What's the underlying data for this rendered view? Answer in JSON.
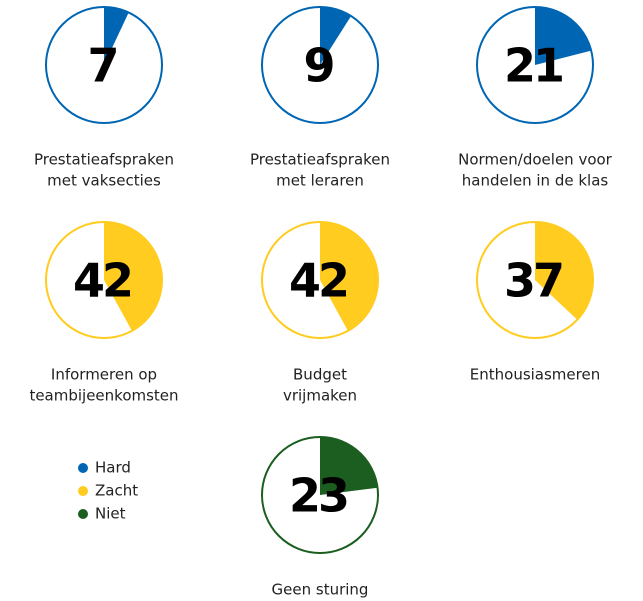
{
  "chart_data": [
    {
      "type": "pie",
      "title": [
        "Prestatieafspraken",
        "met vaksecties"
      ],
      "values": [
        7
      ],
      "total": 100,
      "color": "#0066b3"
    },
    {
      "type": "pie",
      "title": [
        "Prestatieafspraken",
        "met leraren"
      ],
      "values": [
        9
      ],
      "total": 100,
      "color": "#0066b3"
    },
    {
      "type": "pie",
      "title": [
        "Normen/doelen voor",
        "handelen in de klas"
      ],
      "values": [
        21
      ],
      "total": 100,
      "color": "#0066b3"
    },
    {
      "type": "pie",
      "title": [
        "Informeren op",
        "teambijeenkomsten"
      ],
      "values": [
        42
      ],
      "total": 100,
      "color": "#ffcc1f"
    },
    {
      "type": "pie",
      "title": [
        "Budget",
        "vrijmaken"
      ],
      "values": [
        42
      ],
      "total": 100,
      "color": "#ffcc1f"
    },
    {
      "type": "pie",
      "title": [
        "Enthousiasmeren"
      ],
      "values": [
        37
      ],
      "total": 100,
      "color": "#ffcc1f"
    },
    {
      "type": "pie",
      "title": [
        "Geen sturing"
      ],
      "values": [
        23
      ],
      "total": 100,
      "color": "#1b5e20"
    }
  ],
  "legend": [
    {
      "name": "Hard",
      "color": "#0066b3"
    },
    {
      "name": "Zacht",
      "color": "#ffcc1f"
    },
    {
      "name": "Niet",
      "color": "#1b5e20"
    }
  ]
}
